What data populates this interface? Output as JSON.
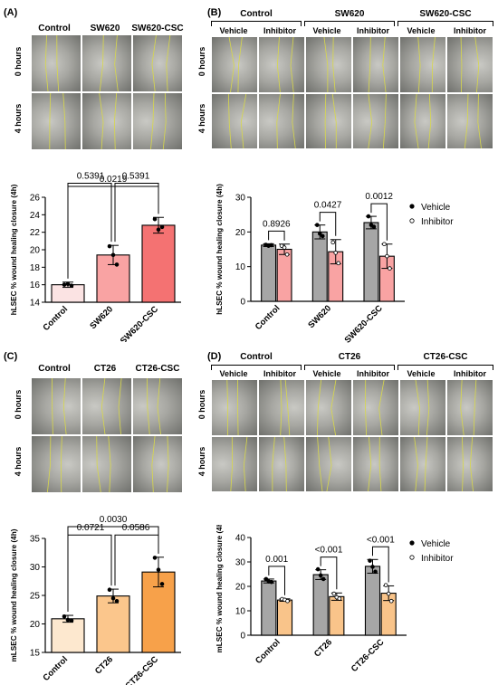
{
  "panels": {
    "A": {
      "label": "(A)",
      "columns": [
        "Control",
        "SW620",
        "SW620-CSC"
      ],
      "rows": [
        "0 hours",
        "4 hours"
      ]
    },
    "B": {
      "label": "(B)",
      "groups": [
        "Control",
        "SW620",
        "SW620-CSC"
      ],
      "subcolumns": [
        "Vehicle",
        "Inhibitor"
      ],
      "rows": [
        "0 hours",
        "4 hours"
      ]
    },
    "C": {
      "label": "(C)",
      "columns": [
        "Control",
        "CT26",
        "CT26-CSC"
      ],
      "rows": [
        "0 hours",
        "4 hours"
      ]
    },
    "D": {
      "label": "(D)",
      "groups": [
        "Control",
        "CT26",
        "CT26-CSC"
      ],
      "subcolumns": [
        "Vehicle",
        "Inhibitor"
      ],
      "rows": [
        "0 hours",
        "4 hours"
      ]
    }
  },
  "colors": {
    "A_bars": [
      "#fbe3e3",
      "#f9a3a3",
      "#f47272"
    ],
    "C_bars": [
      "#fde8cf",
      "#fbc68c",
      "#f7a14a"
    ],
    "vehicle": "#a6a6a6",
    "inhibitor_B": "#f9a3a3",
    "inhibitor_D": "#f9c48a",
    "cell_bg": "#8a8a86",
    "line": "#d8d84a"
  },
  "chart_data": [
    {
      "id": "A-bar",
      "type": "bar",
      "categories": [
        "Control",
        "SW620",
        "SW620-CSC"
      ],
      "values": [
        16.0,
        19.4,
        22.8
      ],
      "errors": [
        0.3,
        1.1,
        0.9
      ],
      "points": [
        [
          16.0,
          16.1,
          15.9
        ],
        [
          20.4,
          19.4,
          18.3
        ],
        [
          23.5,
          22.3,
          22.6
        ]
      ],
      "ylabel": "hLSEC % wound healing closure (4h)",
      "ylim": [
        14,
        26
      ],
      "yticks": [
        14,
        16,
        18,
        20,
        22,
        24,
        26
      ],
      "comparisons": [
        {
          "from": 0,
          "to": 1,
          "label": "0.5391",
          "level": 1
        },
        {
          "from": 1,
          "to": 2,
          "label": "0.5391",
          "level": 1
        },
        {
          "from": 0,
          "to": 2,
          "label": "0.0219",
          "level": 2
        }
      ]
    },
    {
      "id": "B-bar",
      "type": "bar",
      "categories": [
        "Control",
        "SW620",
        "SW620-CSC"
      ],
      "series": [
        {
          "name": "Vehicle",
          "values": [
            16.2,
            20.0,
            22.7
          ],
          "errors": [
            0.4,
            2.0,
            1.8
          ],
          "points": [
            [
              16.3,
              16.0,
              16.2
            ],
            [
              22.0,
              19.5,
              18.8
            ],
            [
              24.5,
              22.0,
              21.5
            ]
          ]
        },
        {
          "name": "Inhibitor",
          "values": [
            15.0,
            14.3,
            13.0
          ],
          "errors": [
            1.5,
            3.5,
            3.5
          ],
          "points": [
            [
              16.0,
              15.5,
              13.5
            ],
            [
              17.0,
              14.0,
              11.0
            ],
            [
              16.5,
              13.0,
              9.5
            ]
          ]
        }
      ],
      "ylabel": "hLSEC % wound healing closure (4h)",
      "ylim": [
        0,
        30
      ],
      "yticks": [
        0,
        10,
        20,
        30
      ],
      "comparisons": [
        {
          "group": 0,
          "label": "0.8926"
        },
        {
          "group": 1,
          "label": "0.0427"
        },
        {
          "group": 2,
          "label": "0.0012"
        }
      ]
    },
    {
      "id": "C-bar",
      "type": "bar",
      "categories": [
        "Control",
        "CT26",
        "CT26-CSC"
      ],
      "values": [
        20.9,
        24.9,
        29.1
      ],
      "errors": [
        0.6,
        1.2,
        2.6
      ],
      "points": [
        [
          21.3,
          20.7,
          20.6
        ],
        [
          26.0,
          24.5,
          24.0
        ],
        [
          31.6,
          29.5,
          27.0
        ]
      ],
      "ylabel": "mLSEC % wound healing closure (4h)",
      "ylim": [
        15,
        35
      ],
      "yticks": [
        15,
        20,
        25,
        30,
        35
      ],
      "comparisons": [
        {
          "from": 0,
          "to": 1,
          "label": "0.0721",
          "level": 1
        },
        {
          "from": 1,
          "to": 2,
          "label": "0.0586",
          "level": 1
        },
        {
          "from": 0,
          "to": 2,
          "label": "0.0030",
          "level": 2
        }
      ]
    },
    {
      "id": "D-bar",
      "type": "bar",
      "categories": [
        "Control",
        "CT26",
        "CT26-CSC"
      ],
      "series": [
        {
          "name": "Vehicle",
          "values": [
            22.2,
            24.8,
            28.2
          ],
          "errors": [
            0.8,
            2.0,
            2.8
          ],
          "points": [
            [
              23.0,
              22.0,
              21.8
            ],
            [
              27.0,
              24.5,
              23.0
            ],
            [
              30.5,
              28.0,
              26.0
            ]
          ]
        },
        {
          "name": "Inhibitor",
          "values": [
            14.4,
            15.8,
            17.2
          ],
          "errors": [
            0.5,
            1.5,
            3.0
          ],
          "points": [
            [
              14.8,
              14.5,
              14.0
            ],
            [
              17.0,
              15.5,
              15.0
            ],
            [
              20.5,
              17.0,
              14.0
            ]
          ]
        }
      ],
      "ylabel": "mLSEC % wound healing closure (4h)",
      "ylim": [
        0,
        40
      ],
      "yticks": [
        0,
        10,
        20,
        30,
        40
      ],
      "comparisons": [
        {
          "group": 0,
          "label": "0.001"
        },
        {
          "group": 1,
          "label": "<0.001"
        },
        {
          "group": 2,
          "label": "<0.001"
        }
      ]
    }
  ]
}
